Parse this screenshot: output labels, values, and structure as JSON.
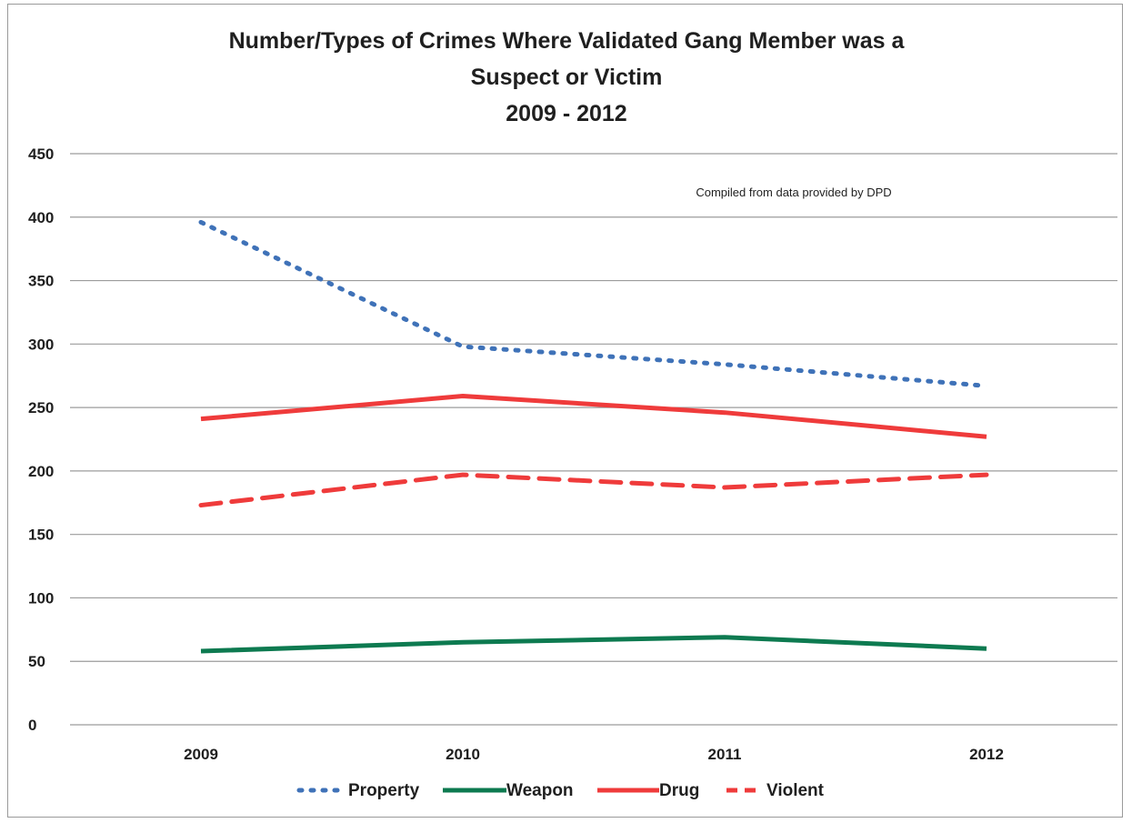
{
  "chart_data": {
    "type": "line",
    "title_lines": [
      "Number/Types of Crimes Where Validated Gang Member was a",
      "Suspect or Victim",
      "2009 - 2012"
    ],
    "annotation": "Compiled from data provided by DPD",
    "categories": [
      "2009",
      "2010",
      "2011",
      "2012"
    ],
    "ylim": [
      0,
      450
    ],
    "yticks": [
      "0",
      "50",
      "100",
      "150",
      "200",
      "250",
      "300",
      "350",
      "400",
      "450"
    ],
    "grid": true,
    "legend_position": "bottom",
    "series": [
      {
        "name": "Property",
        "values": [
          396,
          298,
          284,
          267
        ],
        "color": "#3f72b8",
        "style": "dotted"
      },
      {
        "name": "Weapon",
        "values": [
          58,
          65,
          69,
          60
        ],
        "color": "#0d7a50",
        "style": "solid"
      },
      {
        "name": "Drug",
        "values": [
          241,
          259,
          246,
          227
        ],
        "color": "#ef3b3b",
        "style": "solid"
      },
      {
        "name": "Violent",
        "values": [
          173,
          197,
          187,
          197
        ],
        "color": "#ef3b3b",
        "style": "dashed"
      }
    ]
  }
}
